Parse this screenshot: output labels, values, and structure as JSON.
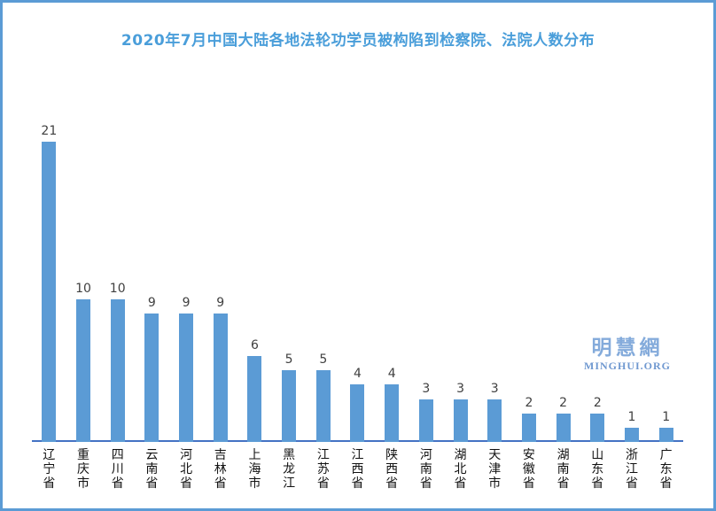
{
  "title": "2020年7月中国大陆各地法轮功学员被构陷到检察院、法院人数分布",
  "watermark": {
    "cjk": "明慧網",
    "latin": "MINGHUI.ORG"
  },
  "colors": {
    "bar": "#5B9BD5",
    "axis_line": "#4472C4",
    "page_border": "#5B9BD5",
    "title_text": "#4A9EDA",
    "value_label_text": "#404040",
    "category_label_text": "#111111",
    "watermark_cjk": "#84ABDB",
    "watermark_latin": "#6F98D0"
  },
  "chart_data": {
    "type": "bar",
    "title": "2020年7月中国大陆各地法轮功学员被构陷到检察院、法院人数分布",
    "categories": [
      "辽宁省",
      "重庆市",
      "四川省",
      "云南省",
      "河北省",
      "吉林省",
      "上海市",
      "黑龙江",
      "江苏省",
      "江西省",
      "陕西省",
      "河南省",
      "湖北省",
      "天津市",
      "安徽省",
      "湖南省",
      "山东省",
      "浙江省",
      "广东省"
    ],
    "values": [
      21,
      10,
      10,
      9,
      9,
      9,
      6,
      5,
      5,
      4,
      4,
      3,
      3,
      3,
      2,
      2,
      2,
      1,
      1
    ],
    "xlabel": "",
    "ylabel": "",
    "ylim": [
      0,
      22
    ],
    "grid": false,
    "legend": false,
    "y_axis_shown": false,
    "value_labels_shown": true,
    "category_label_orientation": "vertical"
  }
}
